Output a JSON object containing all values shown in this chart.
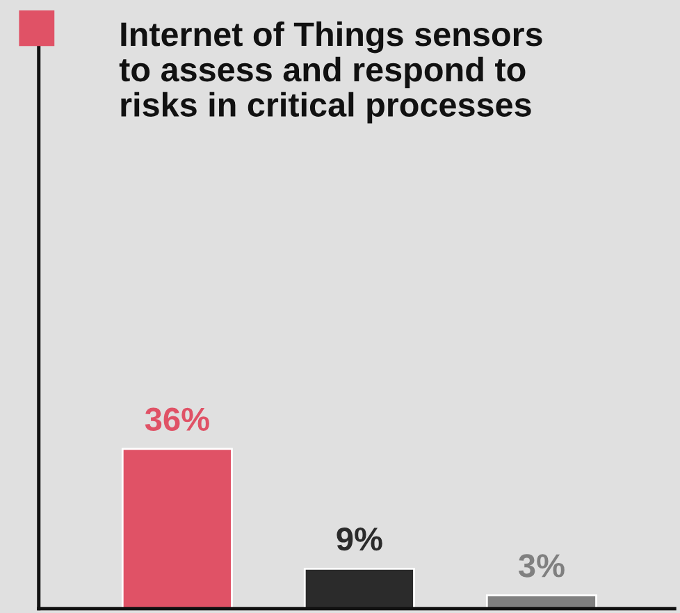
{
  "chart_data": {
    "type": "bar",
    "title": "Internet of Things sensors\nto assess and respond to\nrisks in critical processes",
    "categories": [
      null,
      null,
      null
    ],
    "values": [
      36,
      9,
      3
    ],
    "colors": [
      "#e05266",
      "#2b2b2b",
      "#808080"
    ],
    "value_labels": [
      "36%",
      "9%",
      "3%"
    ],
    "ylim": [
      0,
      134
    ],
    "tick_labels": false,
    "grid": false,
    "legend": false
  }
}
